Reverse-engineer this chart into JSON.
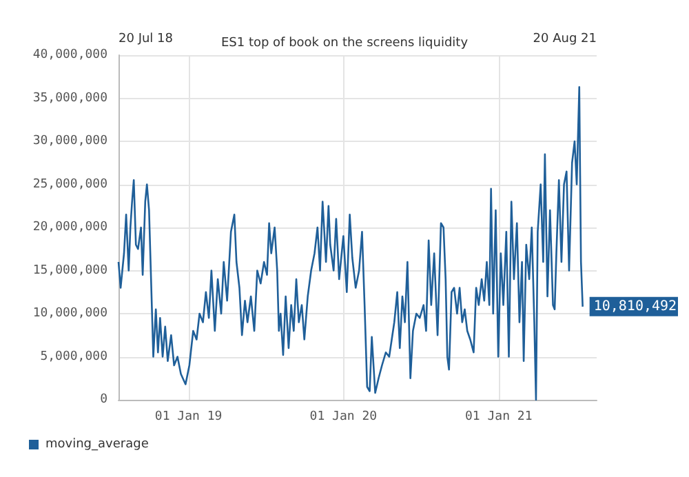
{
  "chart_data": {
    "type": "line",
    "title": "ES1 top of book on the screens liquidity",
    "annotations": [
      "20 Jul 18",
      "20 Aug 21"
    ],
    "x": [
      "2018-07-20",
      "2018-07-25",
      "2018-08-02",
      "2018-08-07",
      "2018-08-13",
      "2018-08-17",
      "2018-08-21",
      "2018-08-25",
      "2018-08-30",
      "2018-09-04",
      "2018-09-11",
      "2018-09-15",
      "2018-09-21",
      "2018-09-25",
      "2018-09-30",
      "2018-10-05",
      "2018-10-10",
      "2018-10-16",
      "2018-10-21",
      "2018-10-26",
      "2018-11-01",
      "2018-11-07",
      "2018-11-13",
      "2018-11-21",
      "2018-11-28",
      "2018-12-06",
      "2018-12-14",
      "2018-12-25",
      "2019-01-03",
      "2019-01-12",
      "2019-01-20",
      "2019-01-27",
      "2019-02-04",
      "2019-02-11",
      "2019-02-18",
      "2019-02-24",
      "2019-03-04",
      "2019-03-11",
      "2019-03-19",
      "2019-03-25",
      "2019-04-02",
      "2019-04-11",
      "2019-04-19",
      "2019-04-24",
      "2019-05-01",
      "2019-05-07",
      "2019-05-14",
      "2019-05-20",
      "2019-05-28",
      "2019-06-05",
      "2019-06-12",
      "2019-06-20",
      "2019-06-28",
      "2019-07-05",
      "2019-07-10",
      "2019-07-15",
      "2019-07-23",
      "2019-07-29",
      "2019-08-02",
      "2019-08-06",
      "2019-08-12",
      "2019-08-18",
      "2019-08-25",
      "2019-08-31",
      "2019-09-06",
      "2019-09-12",
      "2019-09-18",
      "2019-09-25",
      "2019-10-01",
      "2019-10-09",
      "2019-10-17",
      "2019-10-25",
      "2019-11-01",
      "2019-11-07",
      "2019-11-13",
      "2019-11-21",
      "2019-11-27",
      "2019-12-01",
      "2019-12-09",
      "2019-12-15",
      "2019-12-22",
      "2020-01-01",
      "2020-01-09",
      "2020-01-16",
      "2020-01-22",
      "2020-01-30",
      "2020-02-07",
      "2020-02-14",
      "2020-02-20",
      "2020-02-26",
      "2020-03-03",
      "2020-03-08",
      "2020-03-16",
      "2020-03-24",
      "2020-04-01",
      "2020-04-10",
      "2020-04-18",
      "2020-04-24",
      "2020-04-30",
      "2020-05-07",
      "2020-05-13",
      "2020-05-19",
      "2020-05-25",
      "2020-05-31",
      "2020-06-07",
      "2020-06-13",
      "2020-06-21",
      "2020-06-29",
      "2020-07-08",
      "2020-07-14",
      "2020-07-20",
      "2020-07-26",
      "2020-08-02",
      "2020-08-10",
      "2020-08-18",
      "2020-08-24",
      "2020-08-29",
      "2020-09-02",
      "2020-09-06",
      "2020-09-12",
      "2020-09-18",
      "2020-09-25",
      "2020-10-01",
      "2020-10-07",
      "2020-10-13",
      "2020-10-19",
      "2020-10-26",
      "2020-11-03",
      "2020-11-09",
      "2020-11-15",
      "2020-11-22",
      "2020-11-28",
      "2020-12-04",
      "2020-12-10",
      "2020-12-14",
      "2020-12-19",
      "2020-12-25",
      "2020-12-31",
      "2021-01-06",
      "2021-01-12",
      "2021-01-19",
      "2021-01-25",
      "2021-01-31",
      "2021-02-06",
      "2021-02-13",
      "2021-02-19",
      "2021-02-25",
      "2021-03-01",
      "2021-03-07",
      "2021-03-14",
      "2021-03-20",
      "2021-03-26",
      "2021-03-30",
      "2021-04-03",
      "2021-04-10",
      "2021-04-16",
      "2021-04-20",
      "2021-04-26",
      "2021-05-02",
      "2021-05-09",
      "2021-05-13",
      "2021-05-17",
      "2021-05-23",
      "2021-05-29",
      "2021-06-04",
      "2021-06-10",
      "2021-06-16",
      "2021-06-23",
      "2021-06-29",
      "2021-07-04",
      "2021-07-10",
      "2021-07-14",
      "2021-07-18"
    ],
    "series": [
      {
        "name": "moving_average",
        "color": "#1f5f99",
        "values": [
          16000000,
          13000000,
          17000000,
          21500000,
          15000000,
          20000000,
          23000000,
          25500000,
          18000000,
          17500000,
          20000000,
          14500000,
          23000000,
          25000000,
          22000000,
          13500000,
          5000000,
          10500000,
          5500000,
          9500000,
          5000000,
          8500000,
          4500000,
          7500000,
          4000000,
          5000000,
          3000000,
          1800000,
          4000000,
          8000000,
          7000000,
          10000000,
          9000000,
          12500000,
          9500000,
          15000000,
          8000000,
          14000000,
          10000000,
          16000000,
          11500000,
          19500000,
          21500000,
          16000000,
          13000000,
          7500000,
          11500000,
          9000000,
          12000000,
          8000000,
          15000000,
          13500000,
          16000000,
          14500000,
          20500000,
          17000000,
          20000000,
          15000000,
          8000000,
          10000000,
          5200000,
          12000000,
          6000000,
          11000000,
          8000000,
          14000000,
          9000000,
          11000000,
          7000000,
          12000000,
          15000000,
          17000000,
          20000000,
          15000000,
          23000000,
          16000000,
          22500000,
          18000000,
          15000000,
          21000000,
          14000000,
          19000000,
          12500000,
          21500000,
          16500000,
          13000000,
          15000000,
          19500000,
          11000000,
          1500000,
          1000000,
          7300000,
          800000,
          2500000,
          4000000,
          5500000,
          5000000,
          7000000,
          9000000,
          12500000,
          6000000,
          12000000,
          9000000,
          16000000,
          2500000,
          8000000,
          10000000,
          9500000,
          11000000,
          8000000,
          18500000,
          11000000,
          17000000,
          7500000,
          20500000,
          20000000,
          14000000,
          5000000,
          3500000,
          12500000,
          13000000,
          10000000,
          13000000,
          9000000,
          10500000,
          8000000,
          7000000,
          5500000,
          13000000,
          11000000,
          14000000,
          11500000,
          16000000,
          11000000,
          24500000,
          10000000,
          22000000,
          5000000,
          17000000,
          11000000,
          19500000,
          5000000,
          23000000,
          14000000,
          20500000,
          9000000,
          16000000,
          4500000,
          18000000,
          14000000,
          20000000,
          9000000,
          0,
          19500000,
          25000000,
          16000000,
          28500000,
          12000000,
          22000000,
          11000000,
          10500000,
          17000000,
          25500000,
          16000000,
          25000000,
          26500000,
          15000000,
          27500000,
          30000000,
          25000000,
          36300000,
          16000000,
          10810492
        ],
        "value_labels": [
          null,
          null,
          null,
          null,
          null,
          null,
          null,
          null,
          null,
          null,
          null,
          null,
          null,
          null,
          null,
          null,
          null,
          null,
          null,
          null,
          null,
          null,
          null,
          null,
          null,
          null,
          null,
          null,
          null,
          null,
          null,
          null,
          null,
          null,
          null,
          null,
          null,
          null,
          null,
          null,
          null,
          null,
          null,
          null,
          null,
          null,
          null,
          null,
          null,
          null,
          null,
          null,
          null,
          null,
          null,
          null,
          null,
          null,
          null,
          null,
          null,
          null,
          null,
          null,
          null,
          null,
          null,
          null,
          null,
          null,
          null,
          null,
          null,
          null,
          null,
          null,
          null,
          null,
          null,
          null,
          null,
          null,
          null,
          null,
          null,
          null,
          null,
          null,
          null,
          null,
          null,
          null,
          null,
          null,
          null,
          null,
          null,
          null,
          null,
          null,
          null,
          null,
          null,
          null,
          null,
          null,
          null,
          null,
          null,
          null,
          null,
          null,
          null,
          null,
          null,
          null,
          null,
          null,
          null,
          null,
          null,
          null,
          null,
          null,
          null,
          null,
          null,
          null,
          null,
          null,
          null,
          null,
          null,
          null,
          null,
          null,
          null,
          null,
          null,
          null,
          null,
          null,
          null,
          null,
          null,
          null,
          null,
          null,
          null,
          null,
          null,
          null,
          null,
          null,
          null,
          null,
          null,
          null,
          null,
          null,
          null,
          null,
          null,
          null,
          null,
          null,
          null,
          null,
          null,
          null,
          null,
          null,
          "10,810,492"
        ]
      }
    ],
    "xlim": [
      "2018-07-20",
      "2021-08-20"
    ],
    "xticks": [
      {
        "value": "2019-01-01",
        "label": "01 Jan 19"
      },
      {
        "value": "2020-01-01",
        "label": "01 Jan 20"
      },
      {
        "value": "2021-01-01",
        "label": "01 Jan 21"
      }
    ],
    "ylim": [
      0,
      40000000
    ],
    "yticks": [
      0,
      {
        "value": 5000000,
        "label": "5,000,000"
      },
      {
        "value": 10000000,
        "label": "10,000,000"
      },
      {
        "value": 15000000,
        "label": "15,000,000"
      },
      {
        "value": 20000000,
        "label": "20,000,000"
      },
      {
        "value": 25000000,
        "label": "25,000,000"
      },
      {
        "value": 30000000,
        "label": "30,000,000"
      },
      {
        "value": 35000000,
        "label": "35,000,000"
      },
      {
        "value": 40000000,
        "label": "40,000,000"
      }
    ],
    "grid": true,
    "legend": "bottom left",
    "marker": "none",
    "line_style": "solid"
  }
}
